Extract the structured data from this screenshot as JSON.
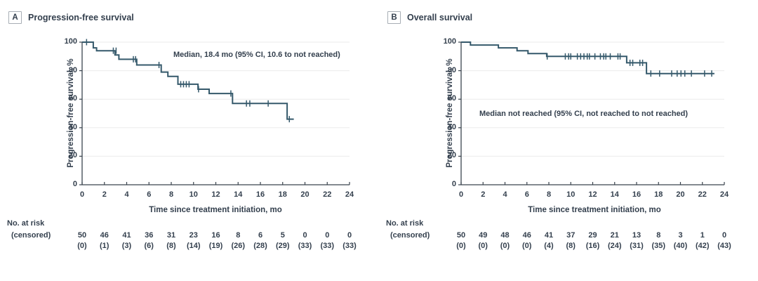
{
  "figure": {
    "colors": {
      "curve": "#35596b",
      "text": "#333f4d",
      "grid": "#ebebeb",
      "axis": "#3a444e",
      "background": "#ffffff"
    }
  },
  "chart_data": [
    {
      "type": "line",
      "subtype": "kaplan-meier-step",
      "panel_letter": "A",
      "title": "Progression-free survival",
      "annotation": "Median, 18.4 mo (95% CI, 10.6 to not reached)",
      "xlabel": "Time since treatment initiation, mo",
      "ylabel": "Progression-free survival, %",
      "xlim": [
        0,
        24
      ],
      "ylim": [
        0,
        100
      ],
      "xticks": [
        0,
        2,
        4,
        6,
        8,
        10,
        12,
        14,
        16,
        18,
        20,
        22,
        24
      ],
      "yticks": [
        0,
        20,
        40,
        60,
        80,
        100
      ],
      "grid": true,
      "legend": "none",
      "steps": [
        [
          0,
          100
        ],
        [
          1.0,
          100
        ],
        [
          1.0,
          96
        ],
        [
          1.3,
          96
        ],
        [
          1.3,
          94
        ],
        [
          2.95,
          94
        ],
        [
          2.95,
          91
        ],
        [
          3.3,
          91
        ],
        [
          3.3,
          88
        ],
        [
          4.9,
          88
        ],
        [
          4.9,
          84
        ],
        [
          7.1,
          84
        ],
        [
          7.1,
          79
        ],
        [
          7.7,
          79
        ],
        [
          7.7,
          76
        ],
        [
          8.6,
          76
        ],
        [
          8.6,
          70.5
        ],
        [
          10.4,
          70.5
        ],
        [
          10.4,
          67
        ],
        [
          11.4,
          67
        ],
        [
          11.4,
          64
        ],
        [
          13.5,
          64
        ],
        [
          13.5,
          57
        ],
        [
          18.4,
          57
        ],
        [
          18.4,
          46
        ],
        [
          19.0,
          46
        ]
      ],
      "censor_marks": [
        [
          0.4,
          100
        ],
        [
          2.8,
          94
        ],
        [
          3.05,
          94
        ],
        [
          4.6,
          88
        ],
        [
          4.8,
          88
        ],
        [
          6.9,
          84
        ],
        [
          8.85,
          70.5
        ],
        [
          9.1,
          70.5
        ],
        [
          9.35,
          70.5
        ],
        [
          9.6,
          70.5
        ],
        [
          10.45,
          67
        ],
        [
          13.35,
          64
        ],
        [
          14.75,
          57
        ],
        [
          15.05,
          57
        ],
        [
          16.7,
          57
        ],
        [
          18.6,
          46
        ]
      ],
      "risk_label_line1": "No. at risk",
      "risk_label_line2": "(censored)",
      "at_risk": [
        50,
        46,
        41,
        36,
        31,
        23,
        16,
        8,
        6,
        5,
        0,
        0,
        0
      ],
      "censored": [
        "(0)",
        "(1)",
        "(3)",
        "(6)",
        "(8)",
        "(14)",
        "(19)",
        "(26)",
        "(28)",
        "(29)",
        "(33)",
        "(33)",
        "(33)"
      ]
    },
    {
      "type": "line",
      "subtype": "kaplan-meier-step",
      "panel_letter": "B",
      "title": "Overall survival",
      "annotation": "Median not reached (95% CI, not reached to not reached)",
      "xlabel": "Time since treatment initiation, mo",
      "ylabel": "Progression-free survival, %",
      "xlim": [
        0,
        24
      ],
      "ylim": [
        0,
        100
      ],
      "xticks": [
        0,
        2,
        4,
        6,
        8,
        10,
        12,
        14,
        16,
        18,
        20,
        22,
        24
      ],
      "yticks": [
        0,
        20,
        40,
        60,
        80,
        100
      ],
      "grid": true,
      "legend": "none",
      "steps": [
        [
          0,
          100
        ],
        [
          0.85,
          100
        ],
        [
          0.85,
          98
        ],
        [
          3.4,
          98
        ],
        [
          3.4,
          96
        ],
        [
          5.1,
          96
        ],
        [
          5.1,
          94
        ],
        [
          6.1,
          94
        ],
        [
          6.1,
          92
        ],
        [
          7.8,
          92
        ],
        [
          7.8,
          90
        ],
        [
          15.1,
          90
        ],
        [
          15.1,
          85.5
        ],
        [
          16.9,
          85.5
        ],
        [
          16.9,
          78
        ],
        [
          23.1,
          78
        ]
      ],
      "censor_marks": [
        [
          7.85,
          90
        ],
        [
          9.5,
          90
        ],
        [
          9.8,
          90
        ],
        [
          10.0,
          90
        ],
        [
          10.6,
          90
        ],
        [
          10.9,
          90
        ],
        [
          11.2,
          90
        ],
        [
          11.5,
          90
        ],
        [
          11.7,
          90
        ],
        [
          12.2,
          90
        ],
        [
          12.7,
          90
        ],
        [
          13.0,
          90
        ],
        [
          13.2,
          90
        ],
        [
          13.6,
          90
        ],
        [
          14.3,
          90
        ],
        [
          14.5,
          90
        ],
        [
          15.4,
          85.5
        ],
        [
          15.65,
          85.5
        ],
        [
          16.3,
          85.5
        ],
        [
          16.55,
          85.5
        ],
        [
          17.3,
          78
        ],
        [
          18.1,
          78
        ],
        [
          19.2,
          78
        ],
        [
          19.7,
          78
        ],
        [
          20.05,
          78
        ],
        [
          20.4,
          78
        ],
        [
          21.0,
          78
        ],
        [
          22.2,
          78
        ],
        [
          22.85,
          78
        ]
      ],
      "risk_label_line1": "No. at risk",
      "risk_label_line2": "(censored)",
      "at_risk": [
        50,
        49,
        48,
        46,
        41,
        37,
        29,
        21,
        13,
        8,
        3,
        1,
        0
      ],
      "censored": [
        "(0)",
        "(0)",
        "(0)",
        "(0)",
        "(4)",
        "(8)",
        "(16)",
        "(24)",
        "(31)",
        "(35)",
        "(40)",
        "(42)",
        "(43)"
      ]
    }
  ]
}
